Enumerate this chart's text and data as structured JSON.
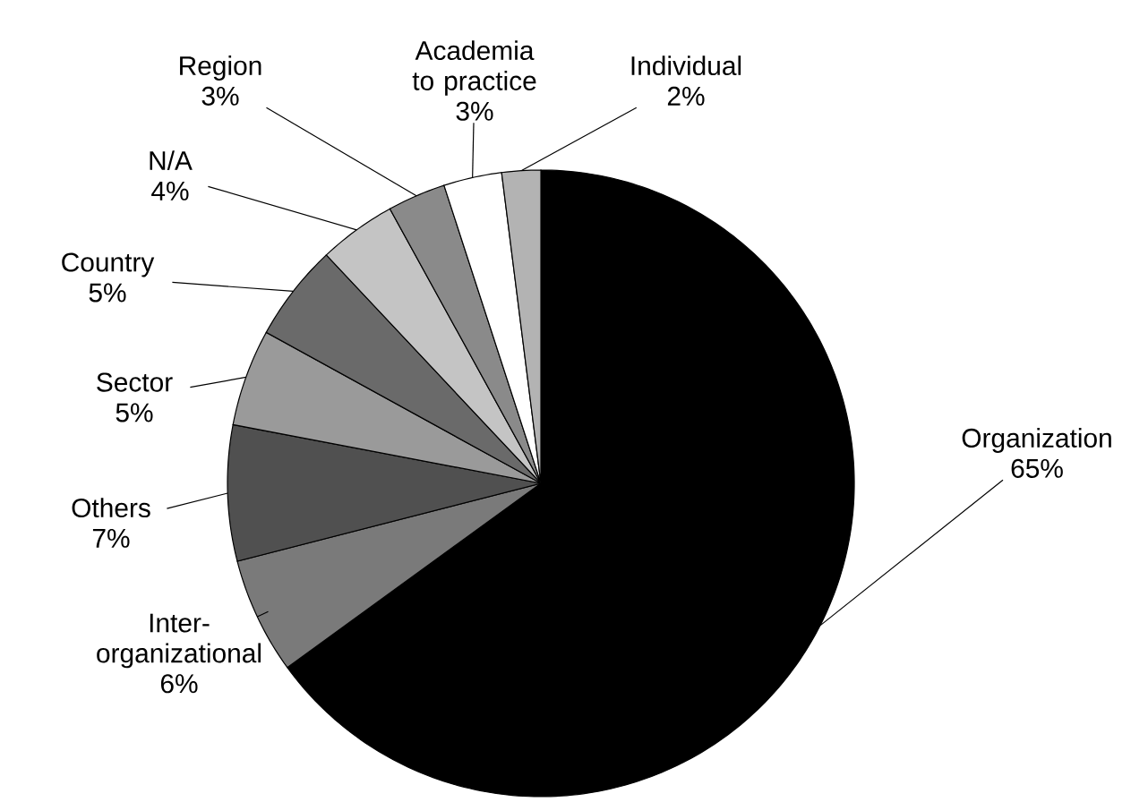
{
  "chart_data": {
    "type": "pie",
    "categories": [
      "Organization",
      "Inter-organizational",
      "Others",
      "Sector",
      "Country",
      "N/A",
      "Region",
      "Academia to practice",
      "Individual"
    ],
    "values": [
      65,
      6,
      7,
      5,
      5,
      4,
      3,
      3,
      2
    ],
    "value_labels": [
      "65%",
      "6%",
      "7%",
      "5%",
      "5%",
      "4%",
      "3%",
      "3%",
      "2%"
    ],
    "colors": [
      "#000000",
      "#7a7a7a",
      "#505050",
      "#9a9a9a",
      "#6a6a6a",
      "#c4c4c4",
      "#8a8a8a",
      "#ffffff",
      "#b3b3b3"
    ],
    "legend": false
  }
}
